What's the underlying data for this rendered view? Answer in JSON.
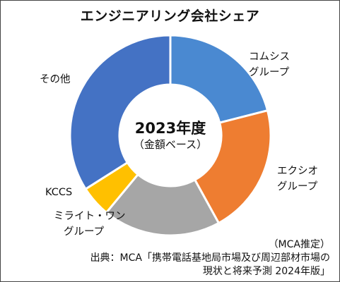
{
  "chart_data": {
    "type": "pie",
    "title": "エンジニアリング会社シェア",
    "center_text": {
      "year": "2023年度",
      "basis": "（金額ベース）"
    },
    "categories": [
      "コムシスグループ",
      "エクシオグループ",
      "ミライト・ワングループ",
      "KCCS",
      "その他"
    ],
    "values": [
      21,
      21,
      19,
      5,
      34
    ],
    "colors": [
      "#4A89D1",
      "#EE7D31",
      "#A6A6A6",
      "#FFC000",
      "#4472C4"
    ],
    "labels": [
      {
        "line1": "コムシス",
        "line2": "グループ"
      },
      {
        "line1": "エクシオ",
        "line2": "グループ"
      },
      {
        "line1": "ミライト・ワン",
        "line2": "グループ"
      },
      {
        "line1": "KCCS",
        "line2": ""
      },
      {
        "line1": "その他",
        "line2": ""
      }
    ],
    "legend": "none",
    "source": {
      "line1": "（MCA推定）",
      "line2": "出典：MCA「携帯電話基地局市場及び周辺部材市場の",
      "line3": "現状と将来予測 2024年版」"
    }
  }
}
